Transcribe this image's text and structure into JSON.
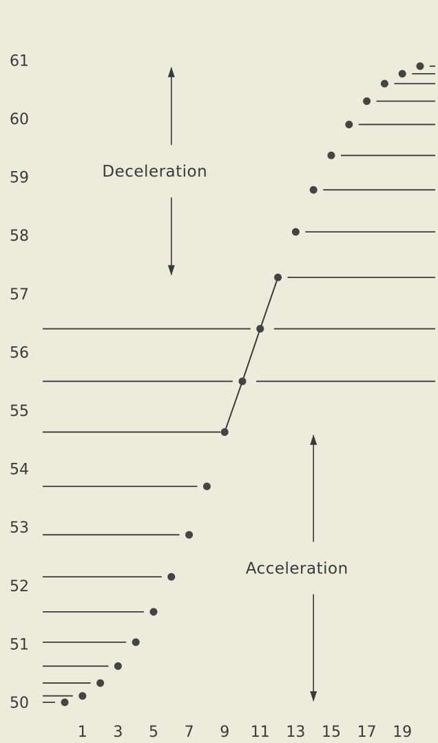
{
  "chart_data": {
    "type": "scatter",
    "title": "",
    "xlabel": "",
    "ylabel": "",
    "x_ticks": [
      1,
      3,
      5,
      7,
      9,
      11,
      13,
      15,
      17,
      19
    ],
    "y_ticks": [
      50,
      51,
      52,
      53,
      54,
      55,
      56,
      57,
      58,
      59,
      60,
      61
    ],
    "xlim": [
      -0.5,
      20.3
    ],
    "ylim": [
      49.8,
      61.2
    ],
    "grid": false,
    "legend": "none",
    "points": [
      {
        "x": 0.0,
        "y": 50.0
      },
      {
        "x": 1.0,
        "y": 50.11
      },
      {
        "x": 2.0,
        "y": 50.33
      },
      {
        "x": 3.0,
        "y": 50.62
      },
      {
        "x": 4.0,
        "y": 51.03
      },
      {
        "x": 5.0,
        "y": 51.55
      },
      {
        "x": 6.0,
        "y": 52.15
      },
      {
        "x": 7.0,
        "y": 52.87
      },
      {
        "x": 8.0,
        "y": 53.7
      },
      {
        "x": 9.0,
        "y": 54.63
      },
      {
        "x": 10.0,
        "y": 55.5
      },
      {
        "x": 11.0,
        "y": 56.4
      },
      {
        "x": 12.0,
        "y": 57.28
      },
      {
        "x": 13.0,
        "y": 58.06
      },
      {
        "x": 14.0,
        "y": 58.78
      },
      {
        "x": 15.0,
        "y": 59.37
      },
      {
        "x": 16.0,
        "y": 59.9
      },
      {
        "x": 17.0,
        "y": 60.3
      },
      {
        "x": 18.0,
        "y": 60.6
      },
      {
        "x": 19.0,
        "y": 60.77
      },
      {
        "x": 20.0,
        "y": 60.9
      }
    ],
    "connected_x_range": [
      9,
      12
    ],
    "annotations": [
      {
        "text": "Deceleration",
        "x_from": 6,
        "y_from": 60.9,
        "y_to": 57.3
      },
      {
        "text": "Acceleration",
        "x_from": 14,
        "y_from": 50.0,
        "y_to": 54.6
      }
    ]
  }
}
